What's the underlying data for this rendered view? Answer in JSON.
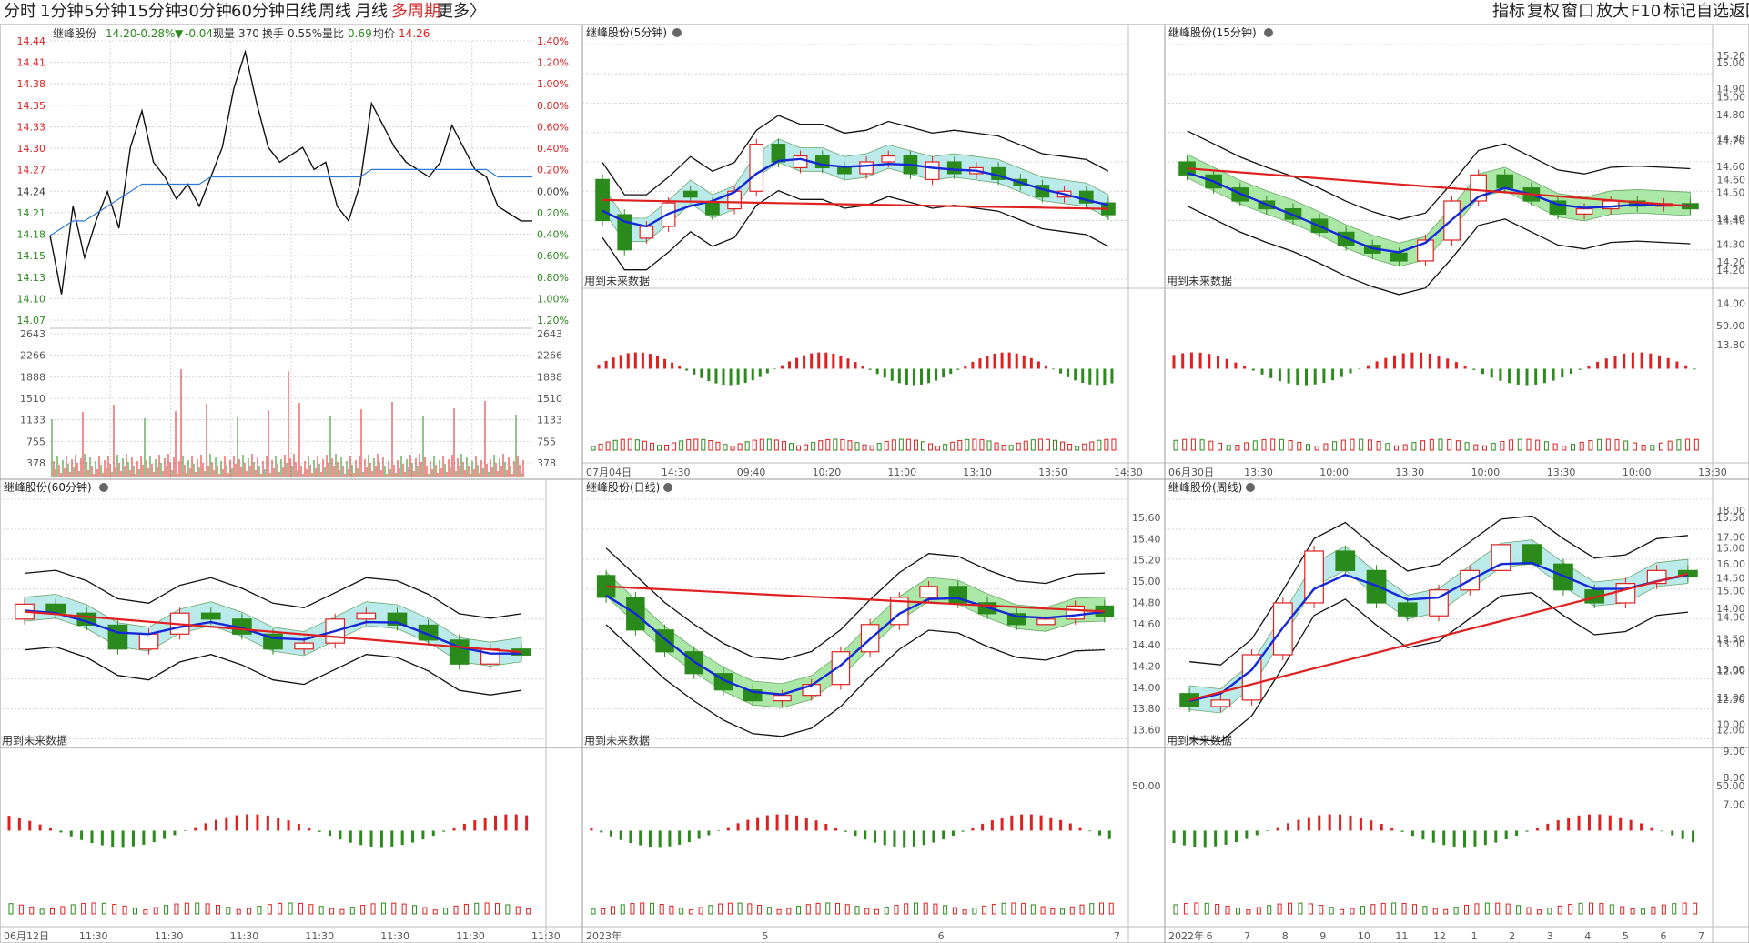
{
  "topbar": {
    "periods": [
      {
        "label": "分时",
        "active": false
      },
      {
        "label": "1分钟",
        "active": false
      },
      {
        "label": "5分钟",
        "active": false
      },
      {
        "label": "15分钟",
        "active": false
      },
      {
        "label": "30分钟",
        "active": false
      },
      {
        "label": "60分钟",
        "active": false
      },
      {
        "label": "日线",
        "active": false
      },
      {
        "label": "周线",
        "active": false
      },
      {
        "label": "月线",
        "active": false
      },
      {
        "label": "多周期",
        "active": true
      },
      {
        "label": "更多",
        "active": false
      }
    ],
    "more_arrow": "〉",
    "right": [
      "指标",
      "复权",
      "窗口",
      "放大",
      "F10",
      "标记",
      "自选",
      "返回"
    ]
  },
  "colors": {
    "up": "#e02020",
    "down": "#2a8a1c",
    "ma_blue": "#1428d8",
    "ma_red": "#e02020",
    "band_green": "#8fe08a",
    "band_cyan": "#a4e4e4",
    "grid": "#d4d4d4",
    "header": "#444444"
  },
  "intraday": {
    "name": "继峰股份",
    "price": "14.20",
    "change_pct": "-0.28%",
    "change_arrow": "▼",
    "change": "-0.04",
    "current_vol_label": "现量",
    "current_vol": "370",
    "turnover_label": "换手",
    "turnover": "0.55%",
    "vol_ratio_label": "量比",
    "vol_ratio": "0.69",
    "avg_label": "均价",
    "avg": "14.26",
    "price_labels": [
      "14.44",
      "14.41",
      "14.38",
      "14.35",
      "14.33",
      "14.30",
      "14.27",
      "14.24",
      "14.21",
      "14.18",
      "14.15",
      "14.13",
      "14.10",
      "14.07"
    ],
    "pct_labels": [
      "1.40%",
      "1.20%",
      "1.00%",
      "0.80%",
      "0.60%",
      "0.40%",
      "0.20%",
      "0.00%",
      "0.20%",
      "0.40%",
      "0.60%",
      "0.80%",
      "1.00%",
      "1.20%"
    ],
    "vol_labels": [
      "2643",
      "2266",
      "1888",
      "1510",
      "1133",
      "755",
      "378"
    ],
    "price_series": [
      14.18,
      14.1,
      14.22,
      14.15,
      14.2,
      14.24,
      14.19,
      14.3,
      14.35,
      14.28,
      14.26,
      14.23,
      14.25,
      14.22,
      14.26,
      14.3,
      14.38,
      14.43,
      14.36,
      14.3,
      14.28,
      14.29,
      14.3,
      14.27,
      14.28,
      14.22,
      14.2,
      14.25,
      14.36,
      14.33,
      14.3,
      14.28,
      14.27,
      14.26,
      14.28,
      14.33,
      14.3,
      14.27,
      14.26,
      14.22,
      14.21,
      14.2,
      14.2
    ],
    "avg_series": [
      14.18,
      14.19,
      14.2,
      14.2,
      14.21,
      14.22,
      14.23,
      14.24,
      14.25,
      14.25,
      14.25,
      14.25,
      14.25,
      14.25,
      14.26,
      14.26,
      14.26,
      14.26,
      14.26,
      14.26,
      14.26,
      14.26,
      14.26,
      14.26,
      14.26,
      14.26,
      14.26,
      14.26,
      14.27,
      14.27,
      14.27,
      14.27,
      14.27,
      14.27,
      14.27,
      14.27,
      14.27,
      14.27,
      14.27,
      14.26,
      14.26,
      14.26,
      14.26
    ]
  },
  "panels": [
    {
      "id": "5min",
      "title": "继峰股份(5分钟)",
      "future_note": "用到未来数据",
      "y_labels": [],
      "x_labels": [
        "07月04日",
        "14:30",
        "09:40",
        "10:20",
        "11:00",
        "13:10",
        "13:50",
        "14:30"
      ],
      "ind_label": "",
      "candles": [
        [
          14.32,
          14.25
        ],
        [
          14.26,
          14.2
        ],
        [
          14.22,
          14.24
        ],
        [
          14.24,
          14.28
        ],
        [
          14.3,
          14.29
        ],
        [
          14.28,
          14.26
        ],
        [
          14.27,
          14.3
        ],
        [
          14.3,
          14.38
        ],
        [
          14.38,
          14.35
        ],
        [
          14.34,
          14.36
        ],
        [
          14.36,
          14.34
        ],
        [
          14.34,
          14.33
        ],
        [
          14.33,
          14.35
        ],
        [
          14.35,
          14.36
        ],
        [
          14.36,
          14.33
        ],
        [
          14.32,
          14.35
        ],
        [
          14.35,
          14.33
        ],
        [
          14.33,
          14.34
        ],
        [
          14.34,
          14.32
        ],
        [
          14.32,
          14.31
        ],
        [
          14.31,
          14.29
        ],
        [
          14.29,
          14.3
        ],
        [
          14.3,
          14.28
        ],
        [
          14.28,
          14.26
        ]
      ],
      "ylim": [
        14.15,
        14.55
      ]
    },
    {
      "id": "15min",
      "title": "继峰股份(15分钟)",
      "future_note": "用到未来数据",
      "y_labels": [
        "15.00",
        "14.90",
        "14.80",
        "14.70",
        "14.60",
        "14.50",
        "14.40",
        "14.30",
        "14.20"
      ],
      "right_labels": [
        "15.20",
        "15.00",
        "14.80",
        "14.60",
        "14.40",
        "14.20",
        "14.00",
        "13.80"
      ],
      "x_labels": [
        "06月30日",
        "13:30",
        "10:00",
        "13:30",
        "10:00",
        "13:30",
        "10:00",
        "13:30"
      ],
      "ind_label": "50.00",
      "candles": [
        [
          14.6,
          14.55
        ],
        [
          14.55,
          14.5
        ],
        [
          14.5,
          14.45
        ],
        [
          14.45,
          14.42
        ],
        [
          14.42,
          14.38
        ],
        [
          14.38,
          14.33
        ],
        [
          14.33,
          14.28
        ],
        [
          14.28,
          14.25
        ],
        [
          14.25,
          14.22
        ],
        [
          14.22,
          14.3
        ],
        [
          14.3,
          14.45
        ],
        [
          14.45,
          14.55
        ],
        [
          14.55,
          14.5
        ],
        [
          14.5,
          14.45
        ],
        [
          14.45,
          14.4
        ],
        [
          14.4,
          14.42
        ],
        [
          14.42,
          14.45
        ],
        [
          14.45,
          14.43
        ],
        [
          14.43,
          14.44
        ],
        [
          14.44,
          14.42
        ]
      ],
      "ylim": [
        14.15,
        15.05
      ]
    },
    {
      "id": "60min",
      "title": "继峰股份(60分钟)",
      "future_note": "用到未来数据",
      "y_labels": [],
      "x_labels": [
        "06月12日",
        "11:30",
        "11:30",
        "11:30",
        "11:30",
        "11:30",
        "11:30",
        "11:30"
      ],
      "ind_label": "",
      "candles": [
        [
          14.4,
          14.45
        ],
        [
          14.45,
          14.42
        ],
        [
          14.42,
          14.38
        ],
        [
          14.38,
          14.3
        ],
        [
          14.3,
          14.35
        ],
        [
          14.35,
          14.42
        ],
        [
          14.42,
          14.4
        ],
        [
          14.4,
          14.35
        ],
        [
          14.35,
          14.3
        ],
        [
          14.3,
          14.32
        ],
        [
          14.32,
          14.4
        ],
        [
          14.4,
          14.42
        ],
        [
          14.42,
          14.38
        ],
        [
          14.38,
          14.33
        ],
        [
          14.33,
          14.25
        ],
        [
          14.25,
          14.3
        ],
        [
          14.3,
          14.28
        ]
      ],
      "ylim": [
        14.0,
        14.8
      ]
    },
    {
      "id": "day",
      "title": "继峰股份(日线)",
      "future_note": "用到未来数据",
      "y_labels": [
        "15.60",
        "15.40",
        "15.20",
        "15.00",
        "14.80",
        "14.60",
        "14.40",
        "14.20",
        "14.00",
        "13.80",
        "13.60"
      ],
      "x_labels": [
        "2023年",
        "5",
        "6",
        "7"
      ],
      "ind_label": "50.00",
      "candles": [
        [
          15.0,
          14.8
        ],
        [
          14.8,
          14.5
        ],
        [
          14.5,
          14.3
        ],
        [
          14.3,
          14.1
        ],
        [
          14.1,
          13.95
        ],
        [
          13.95,
          13.85
        ],
        [
          13.85,
          13.9
        ],
        [
          13.9,
          14.0
        ],
        [
          14.0,
          14.3
        ],
        [
          14.3,
          14.55
        ],
        [
          14.55,
          14.8
        ],
        [
          14.8,
          14.9
        ],
        [
          14.9,
          14.75
        ],
        [
          14.75,
          14.65
        ],
        [
          14.65,
          14.55
        ],
        [
          14.55,
          14.6
        ],
        [
          14.6,
          14.72
        ],
        [
          14.72,
          14.62
        ]
      ],
      "ylim": [
        13.5,
        15.7
      ]
    },
    {
      "id": "week",
      "title": "继峰股份(周线)",
      "future_note": "用到未来数据",
      "y_labels": [
        "15.50",
        "15.00",
        "14.50",
        "14.00",
        "13.50",
        "13.00",
        "12.50",
        "12.00"
      ],
      "right_labels": [
        "18.00",
        "17.00",
        "16.00",
        "15.00",
        "14.00",
        "13.00",
        "12.00",
        "11.00",
        "10.00",
        "9.00",
        "8.00",
        "7.00"
      ],
      "x_labels": [
        "2022年",
        "6",
        "7",
        "8",
        "9",
        "10",
        "11",
        "12",
        "1",
        "2",
        "3",
        "4",
        "5",
        "6",
        "7"
      ],
      "ind_label": "50.00",
      "candles": [
        [
          12.6,
          12.4
        ],
        [
          12.4,
          12.5
        ],
        [
          12.5,
          13.2
        ],
        [
          13.2,
          14.0
        ],
        [
          14.0,
          14.8
        ],
        [
          14.8,
          14.5
        ],
        [
          14.5,
          14.0
        ],
        [
          14.0,
          13.8
        ],
        [
          13.8,
          14.2
        ],
        [
          14.2,
          14.5
        ],
        [
          14.5,
          14.9
        ],
        [
          14.9,
          14.6
        ],
        [
          14.6,
          14.2
        ],
        [
          14.2,
          14.0
        ],
        [
          14.0,
          14.3
        ],
        [
          14.3,
          14.5
        ],
        [
          14.5,
          14.4
        ]
      ],
      "ylim": [
        11.9,
        15.6
      ]
    }
  ]
}
